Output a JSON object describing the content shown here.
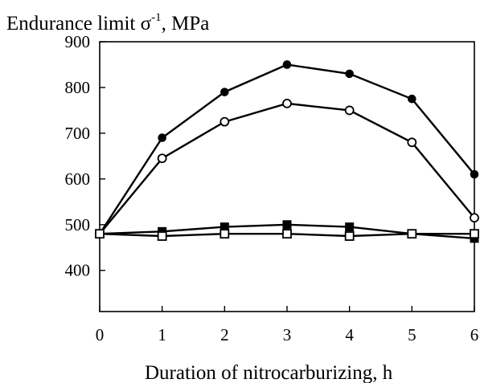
{
  "chart_data": {
    "type": "line",
    "ylabel_main": "Endurance limit σ",
    "ylabel_sup": "-1",
    "ylabel_unit": ", MPa",
    "xlabel": "Duration of nitrocarburizing, h",
    "x": [
      0,
      1,
      2,
      3,
      4,
      5,
      6
    ],
    "xlim": [
      0,
      6
    ],
    "ylim": [
      310,
      900
    ],
    "x_ticks": [
      "0",
      "1",
      "2",
      "3",
      "4",
      "5",
      "6"
    ],
    "y_ticks": [
      400,
      500,
      600,
      700,
      800,
      900
    ],
    "grid": false,
    "series": [
      {
        "marker": "filled-circle",
        "values": [
          480,
          690,
          790,
          850,
          830,
          775,
          610
        ]
      },
      {
        "marker": "open-circle",
        "values": [
          480,
          645,
          725,
          765,
          750,
          680,
          515
        ]
      },
      {
        "marker": "filled-square",
        "values": [
          480,
          485,
          495,
          500,
          495,
          480,
          470
        ]
      },
      {
        "marker": "open-square",
        "values": [
          480,
          475,
          480,
          480,
          475,
          480,
          480
        ]
      }
    ]
  }
}
